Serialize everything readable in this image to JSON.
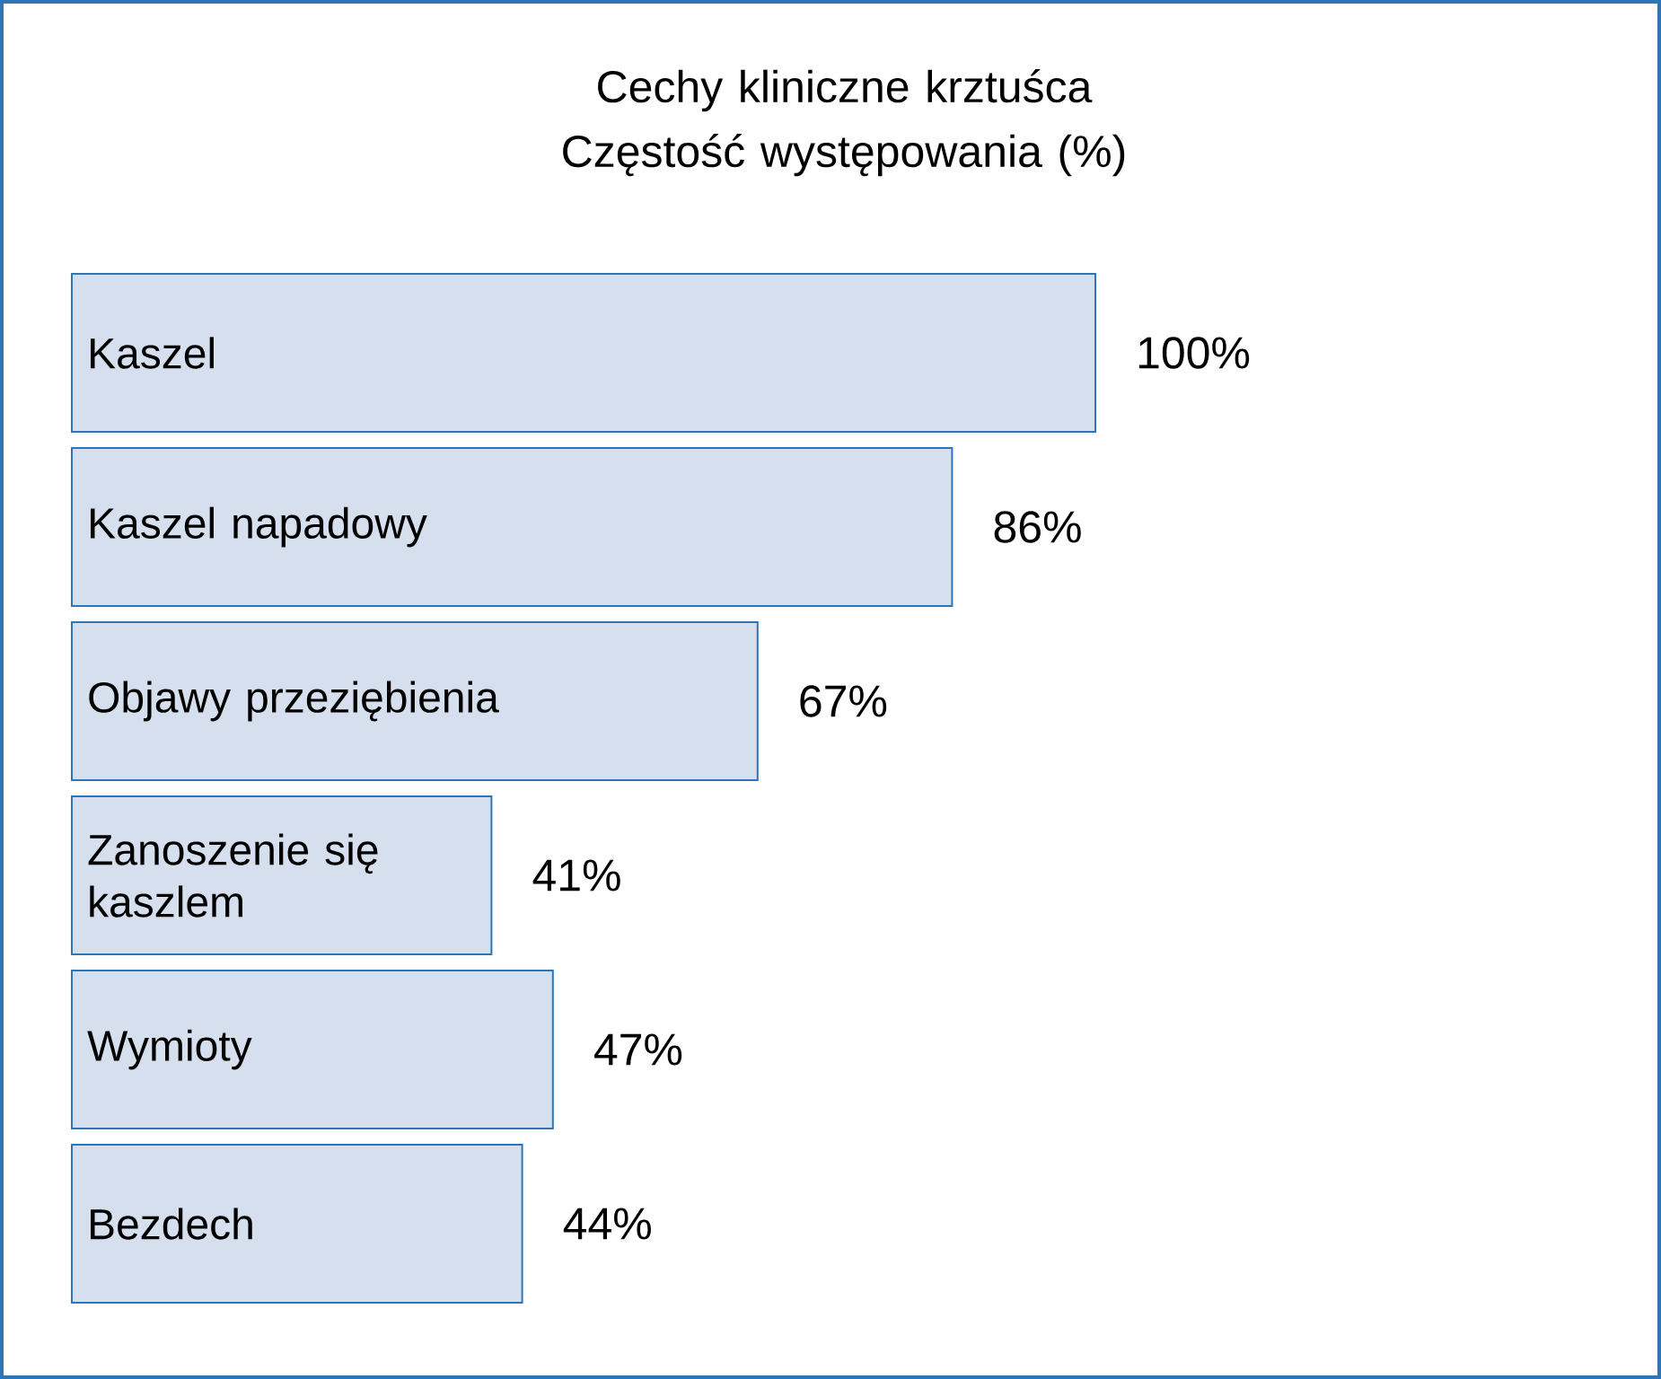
{
  "chart_data": {
    "type": "bar",
    "orientation": "horizontal",
    "title": "Cechy kliniczne krztuśca\nCzęstość występowania (%)",
    "categories": [
      "Kaszel",
      "Kaszel napadowy",
      "Objawy przeziębienia",
      "Zanoszenie się kaszlem",
      "Wymioty",
      "Bezdech"
    ],
    "values": [
      100,
      86,
      67,
      41,
      47,
      44
    ],
    "value_labels": [
      "100%",
      "86%",
      "67%",
      "41%",
      "47%",
      "44%"
    ],
    "color": "#d6dfee"
  }
}
